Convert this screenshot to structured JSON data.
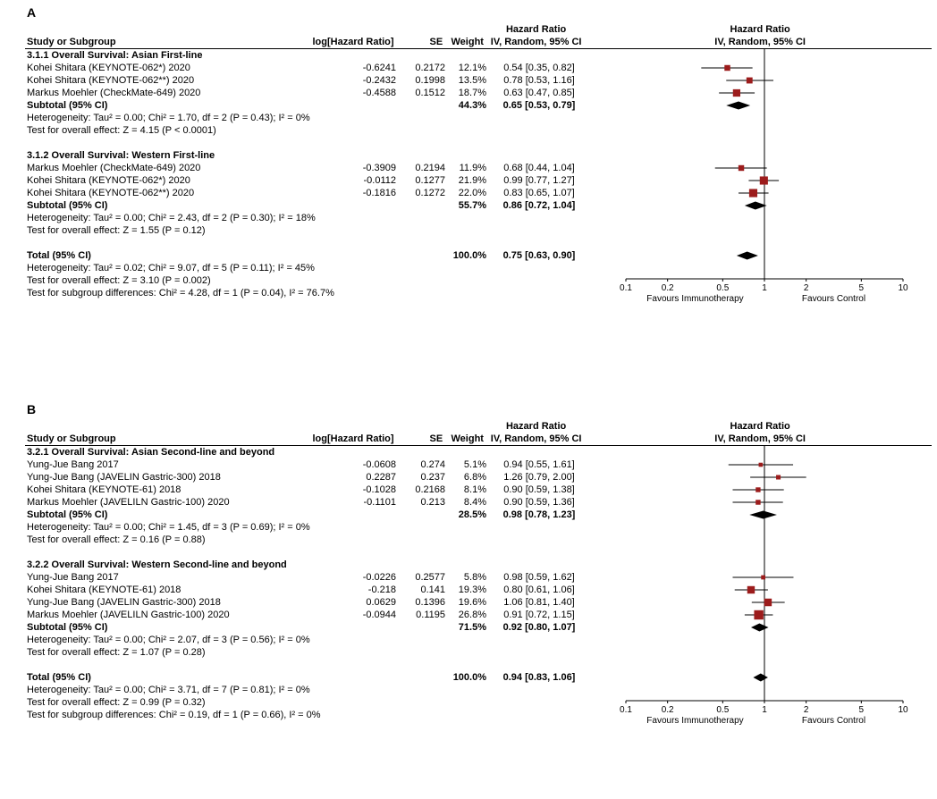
{
  "colors": {
    "marker": "#9c1c1c",
    "diamond": "#000000",
    "line": "#000000"
  },
  "chart_data": [
    {
      "type": "scatter",
      "chart_kind": "forest_plot",
      "panel_label": "A",
      "effect_measure": "Hazard Ratio",
      "axis": {
        "scale": "log",
        "min": 0.1,
        "max": 10,
        "ticks": [
          0.1,
          0.2,
          0.5,
          1,
          2,
          5,
          10
        ],
        "left_label": "Favours Immunotherapy",
        "right_label": "Favours Control"
      },
      "columns": {
        "study": "Study or Subgroup",
        "log_hr": "log[Hazard Ratio]",
        "se": "SE",
        "weight": "Weight",
        "effect": "Hazard Ratio",
        "method": "IV, Random, 95% CI"
      },
      "sections": [
        {
          "title": "3.1.1 Overall Survival: Asian First-line",
          "studies": [
            {
              "name": "Kohei Shitara (KEYNOTE-062*) 2020",
              "log_hr": "-0.6241",
              "se": "0.2172",
              "weight": "12.1%",
              "weight_pct": 12.1,
              "ci_text": "0.54 [0.35, 0.82]",
              "est": 0.54,
              "lo": 0.35,
              "hi": 0.82
            },
            {
              "name": "Kohei Shitara (KEYNOTE-062**) 2020",
              "log_hr": "-0.2432",
              "se": "0.1998",
              "weight": "13.5%",
              "weight_pct": 13.5,
              "ci_text": "0.78 [0.53, 1.16]",
              "est": 0.78,
              "lo": 0.53,
              "hi": 1.16
            },
            {
              "name": "Markus Moehler (CheckMate-649) 2020",
              "log_hr": "-0.4588",
              "se": "0.1512",
              "weight": "18.7%",
              "weight_pct": 18.7,
              "ci_text": "0.63 [0.47, 0.85]",
              "est": 0.63,
              "lo": 0.47,
              "hi": 0.85
            }
          ],
          "subtotal": {
            "label": "Subtotal (95% CI)",
            "weight": "44.3%",
            "ci_text": "0.65 [0.53, 0.79]",
            "est": 0.65,
            "lo": 0.53,
            "hi": 0.79
          },
          "notes": [
            "Heterogeneity: Tau² = 0.00; Chi² = 1.70, df = 2 (P = 0.43); I² = 0%",
            "Test for overall effect: Z = 4.15 (P < 0.0001)"
          ]
        },
        {
          "title": "3.1.2 Overall Survival: Western First-line",
          "studies": [
            {
              "name": "Markus Moehler (CheckMate-649) 2020",
              "log_hr": "-0.3909",
              "se": "0.2194",
              "weight": "11.9%",
              "weight_pct": 11.9,
              "ci_text": "0.68 [0.44, 1.04]",
              "est": 0.68,
              "lo": 0.44,
              "hi": 1.04
            },
            {
              "name": "Kohei Shitara (KEYNOTE-062*) 2020",
              "log_hr": "-0.0112",
              "se": "0.1277",
              "weight": "21.9%",
              "weight_pct": 21.9,
              "ci_text": "0.99 [0.77, 1.27]",
              "est": 0.99,
              "lo": 0.77,
              "hi": 1.27
            },
            {
              "name": "Kohei Shitara (KEYNOTE-062**) 2020",
              "log_hr": "-0.1816",
              "se": "0.1272",
              "weight": "22.0%",
              "weight_pct": 22.0,
              "ci_text": "0.83 [0.65, 1.07]",
              "est": 0.83,
              "lo": 0.65,
              "hi": 1.07
            }
          ],
          "subtotal": {
            "label": "Subtotal (95% CI)",
            "weight": "55.7%",
            "ci_text": "0.86 [0.72, 1.04]",
            "est": 0.86,
            "lo": 0.72,
            "hi": 1.04
          },
          "notes": [
            "Heterogeneity: Tau² = 0.00; Chi² = 2.43, df = 2 (P = 0.30); I² = 18%",
            "Test for overall effect: Z = 1.55 (P = 0.12)"
          ]
        }
      ],
      "total": {
        "label": "Total (95% CI)",
        "weight": "100.0%",
        "ci_text": "0.75 [0.63, 0.90]",
        "est": 0.75,
        "lo": 0.63,
        "hi": 0.9
      },
      "footer_notes": [
        "Heterogeneity: Tau² = 0.02; Chi² = 9.07, df = 5 (P = 0.11); I² = 45%",
        "Test for overall effect: Z = 3.10 (P = 0.002)",
        "Test for subgroup differences: Chi² = 4.28, df = 1 (P = 0.04), I² = 76.7%"
      ]
    },
    {
      "type": "scatter",
      "chart_kind": "forest_plot",
      "panel_label": "B",
      "effect_measure": "Hazard Ratio",
      "axis": {
        "scale": "log",
        "min": 0.1,
        "max": 10,
        "ticks": [
          0.1,
          0.2,
          0.5,
          1,
          2,
          5,
          10
        ],
        "left_label": "Favours Immunotherapy",
        "right_label": "Favours Control"
      },
      "columns": {
        "study": "Study or Subgroup",
        "log_hr": "log[Hazard Ratio]",
        "se": "SE",
        "weight": "Weight",
        "effect": "Hazard Ratio",
        "method": "IV, Random, 95% CI"
      },
      "sections": [
        {
          "title": "3.2.1 Overall Survival: Asian Second-line and beyond",
          "studies": [
            {
              "name": "Yung-Jue Bang 2017",
              "log_hr": "-0.0608",
              "se": "0.274",
              "weight": "5.1%",
              "weight_pct": 5.1,
              "ci_text": "0.94 [0.55, 1.61]",
              "est": 0.94,
              "lo": 0.55,
              "hi": 1.61
            },
            {
              "name": "Yung-Jue Bang (JAVELIN Gastric-300) 2018",
              "log_hr": "0.2287",
              "se": "0.237",
              "weight": "6.8%",
              "weight_pct": 6.8,
              "ci_text": "1.26 [0.79, 2.00]",
              "est": 1.26,
              "lo": 0.79,
              "hi": 2.0
            },
            {
              "name": "Kohei Shitara (KEYNOTE-61) 2018",
              "log_hr": "-0.1028",
              "se": "0.2168",
              "weight": "8.1%",
              "weight_pct": 8.1,
              "ci_text": "0.90 [0.59, 1.38]",
              "est": 0.9,
              "lo": 0.59,
              "hi": 1.38
            },
            {
              "name": "Markus Moehler (JAVELILN Gastric-100) 2020",
              "log_hr": "-0.1101",
              "se": "0.213",
              "weight": "8.4%",
              "weight_pct": 8.4,
              "ci_text": "0.90 [0.59, 1.36]",
              "est": 0.9,
              "lo": 0.59,
              "hi": 1.36
            }
          ],
          "subtotal": {
            "label": "Subtotal (95% CI)",
            "weight": "28.5%",
            "ci_text": "0.98 [0.78, 1.23]",
            "est": 0.98,
            "lo": 0.78,
            "hi": 1.23
          },
          "notes": [
            "Heterogeneity: Tau² = 0.00; Chi² = 1.45, df = 3 (P = 0.69); I² = 0%",
            "Test for overall effect: Z = 0.16 (P = 0.88)"
          ]
        },
        {
          "title": "3.2.2 Overall Survival: Western Second-line and beyond",
          "studies": [
            {
              "name": "Yung-Jue Bang 2017",
              "log_hr": "-0.0226",
              "se": "0.2577",
              "weight": "5.8%",
              "weight_pct": 5.8,
              "ci_text": "0.98 [0.59, 1.62]",
              "est": 0.98,
              "lo": 0.59,
              "hi": 1.62
            },
            {
              "name": "Kohei Shitara (KEYNOTE-61) 2018",
              "log_hr": "-0.218",
              "se": "0.141",
              "weight": "19.3%",
              "weight_pct": 19.3,
              "ci_text": "0.80 [0.61, 1.06]",
              "est": 0.8,
              "lo": 0.61,
              "hi": 1.06
            },
            {
              "name": "Yung-Jue Bang (JAVELIN Gastric-300) 2018",
              "log_hr": "0.0629",
              "se": "0.1396",
              "weight": "19.6%",
              "weight_pct": 19.6,
              "ci_text": "1.06 [0.81, 1.40]",
              "est": 1.06,
              "lo": 0.81,
              "hi": 1.4
            },
            {
              "name": "Markus Moehler (JAVELILN Gastric-100) 2020",
              "log_hr": "-0.0944",
              "se": "0.1195",
              "weight": "26.8%",
              "weight_pct": 26.8,
              "ci_text": "0.91 [0.72, 1.15]",
              "est": 0.91,
              "lo": 0.72,
              "hi": 1.15
            }
          ],
          "subtotal": {
            "label": "Subtotal (95% CI)",
            "weight": "71.5%",
            "ci_text": "0.92 [0.80, 1.07]",
            "est": 0.92,
            "lo": 0.8,
            "hi": 1.07
          },
          "notes": [
            "Heterogeneity: Tau² = 0.00; Chi² = 2.07, df = 3 (P = 0.56); I² = 0%",
            "Test for overall effect: Z = 1.07 (P = 0.28)"
          ]
        }
      ],
      "total": {
        "label": "Total (95% CI)",
        "weight": "100.0%",
        "ci_text": "0.94 [0.83, 1.06]",
        "est": 0.94,
        "lo": 0.83,
        "hi": 1.06
      },
      "footer_notes": [
        "Heterogeneity: Tau² = 0.00; Chi² = 3.71, df = 7 (P = 0.81); I² = 0%",
        "Test for overall effect: Z = 0.99 (P = 0.32)",
        "Test for subgroup differences: Chi² = 0.19, df = 1 (P = 0.66), I² = 0%"
      ]
    }
  ]
}
